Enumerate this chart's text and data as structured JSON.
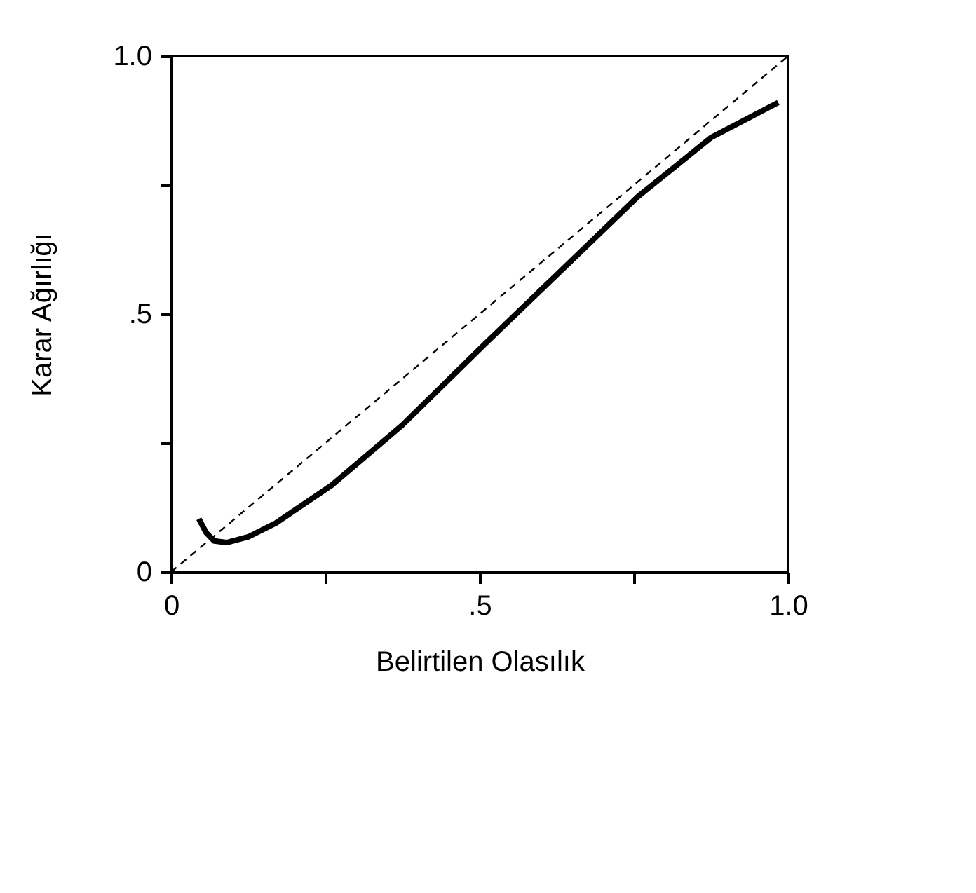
{
  "chart_data": {
    "type": "line",
    "xlabel": "Belirtilen Olasılık",
    "ylabel": "Karar Ağırlığı",
    "xlim": [
      0,
      1
    ],
    "ylim": [
      0,
      1
    ],
    "xticks": [
      0,
      {
        "value": 0.25,
        "label": null
      },
      {
        "value": 0.5,
        "label": ".5"
      },
      {
        "value": 0.75,
        "label": null
      },
      {
        "value": 1,
        "label": "1.0"
      }
    ],
    "yticks": [
      0,
      {
        "value": 0.25,
        "label": null
      },
      {
        "value": 0.5,
        "label": ".5"
      },
      {
        "value": 0.75,
        "label": null
      },
      {
        "value": 1,
        "label": "1.0"
      }
    ],
    "grid": false,
    "marker": "none",
    "series": [
      {
        "color": "#000000",
        "line_style": "solid",
        "x": [
          0.045,
          0.057,
          0.07,
          0.09,
          0.125,
          0.17,
          0.26,
          0.375,
          0.507,
          0.625,
          0.757,
          0.875,
          0.984
        ],
        "values": [
          0.103,
          0.076,
          0.06,
          0.057,
          0.068,
          0.095,
          0.168,
          0.285,
          0.44,
          0.576,
          0.728,
          0.842,
          0.91
        ]
      },
      {
        "color": "#000000",
        "line_style": "dashed",
        "x": [
          0,
          1
        ],
        "values": [
          0,
          1
        ]
      }
    ]
  }
}
